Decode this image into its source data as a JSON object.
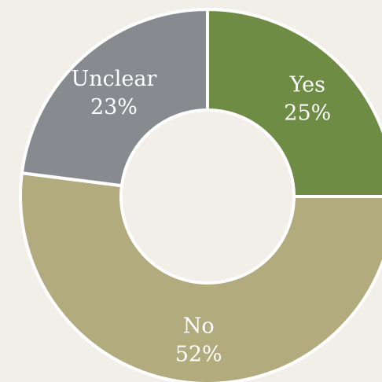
{
  "chart_data": {
    "type": "pie",
    "variant": "donut",
    "slices": [
      {
        "label": "Yes",
        "value": 25,
        "percent_label": "25%",
        "color": "#6f8c45"
      },
      {
        "label": "No",
        "value": 52,
        "percent_label": "52%",
        "color": "#b2ab7e"
      },
      {
        "label": "Unclear",
        "value": 23,
        "percent_label": "23%",
        "color": "#878a8e"
      }
    ],
    "start_angle_deg": 0,
    "direction": "clockwise",
    "separator_color": "#ffffff",
    "background": "#f2efe8"
  }
}
